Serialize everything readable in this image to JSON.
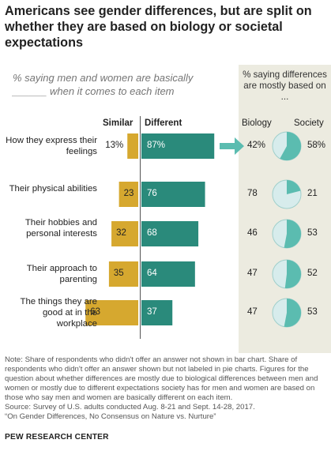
{
  "title": "Americans see gender differences, but are split on whether they are based on biology or societal expectations",
  "subtitle": "% saying men and women are basically ______ when it comes to each item",
  "panel_title": "% saying differences are mostly based on ...",
  "columns": {
    "similar": "Similar",
    "different": "Different",
    "biology": "Biology",
    "society": "Society"
  },
  "colors": {
    "similar": "#d6a82f",
    "different": "#2a8a7b",
    "biology": "#d7ecec",
    "society": "#5bbcb0",
    "panel": "#ecebe0"
  },
  "note": "Note: Share of respondents who didn't offer an answer not shown in bar chart. Share of respondents who didn't offer an answer shown but not labeled in pie charts. Figures for the question about whether differences are mostly due to biological differences between men and women or mostly due to different expectations society has for men and women are based on those who say men and women are basically different on each item.",
  "source": "Source: Survey of U.S. adults conducted Aug. 8-21 and Sept. 14-28, 2017.",
  "report": "“On Gender Differences, No Consensus on Nature vs. Nurture”",
  "org": "PEW RESEARCH CENTER",
  "chart_data": {
    "type": "bar",
    "title": "Americans see gender differences, but are split on whether they are based on biology or societal expectations",
    "categories": [
      "How they express their feelings",
      "Their physical abilities",
      "Their hobbies and personal interests",
      "Their approach to parenting",
      "The things they are good at in the workplace"
    ],
    "series": [
      {
        "name": "Similar",
        "values": [
          13,
          23,
          32,
          35,
          63
        ],
        "labels": [
          "13%",
          "23",
          "32",
          "35",
          "63"
        ]
      },
      {
        "name": "Different",
        "values": [
          87,
          76,
          68,
          64,
          37
        ],
        "labels": [
          "87%",
          "76",
          "68",
          "64",
          "37"
        ]
      }
    ],
    "pies": [
      {
        "biology": 42,
        "society": 58,
        "biology_label": "42%",
        "society_label": "58%"
      },
      {
        "biology": 78,
        "society": 21,
        "biology_label": "78",
        "society_label": "21"
      },
      {
        "biology": 46,
        "society": 53,
        "biology_label": "46",
        "society_label": "53"
      },
      {
        "biology": 47,
        "society": 52,
        "biology_label": "47",
        "society_label": "52"
      },
      {
        "biology": 47,
        "society": 53,
        "biology_label": "47",
        "society_label": "53"
      }
    ],
    "xlim": [
      0,
      100
    ],
    "grid": false
  }
}
